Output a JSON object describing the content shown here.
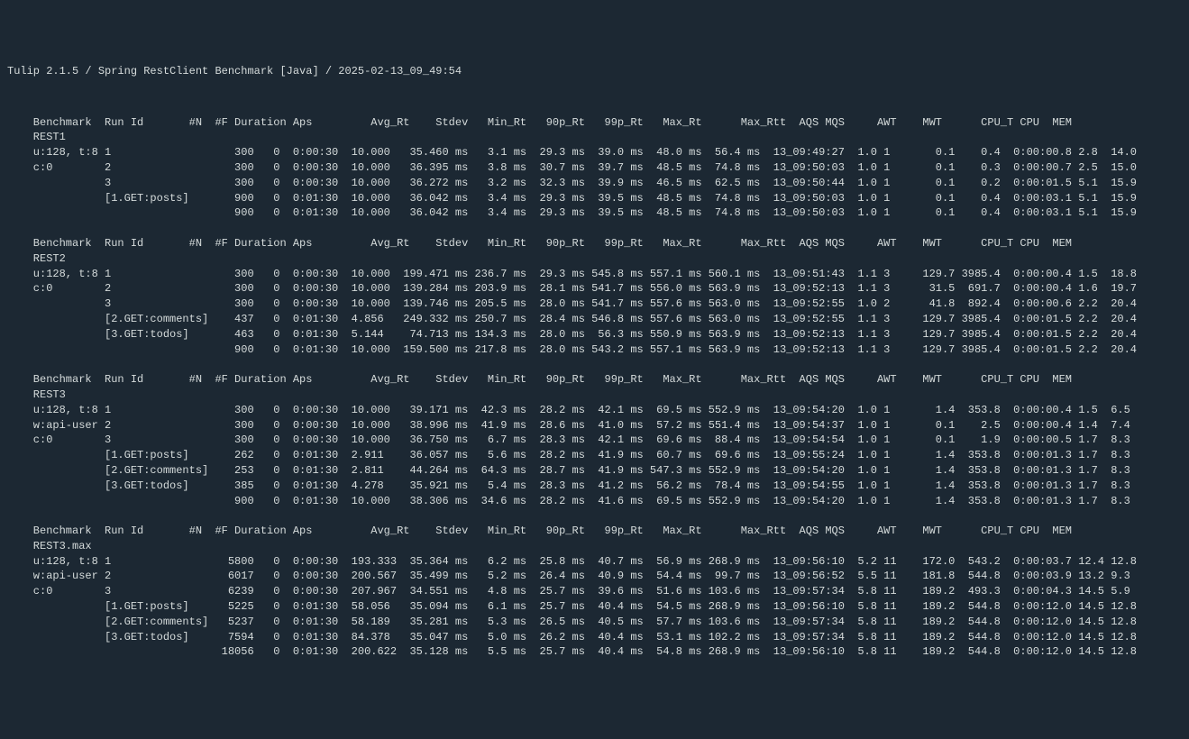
{
  "title": "Tulip 2.1.5 / Spring RestClient Benchmark [Java] / 2025-02-13_09_49:54",
  "header_cols": [
    "Benchmark",
    "Run Id",
    "#N",
    "#F",
    "Duration",
    "Aps",
    "Avg_Rt",
    "Stdev",
    "Min_Rt",
    "90p_Rt",
    "99p_Rt",
    "Max_Rt",
    "Max_Rtt",
    "AQS",
    "MQS",
    "AWT",
    "MWT",
    "CPU_T",
    "CPU",
    "MEM"
  ],
  "sections": [
    {
      "name": "REST1",
      "prefix": [
        "u:128, t:8",
        "c:0",
        "",
        ""
      ],
      "rows": [
        {
          "runid": "1",
          "n": "300",
          "f": "0",
          "dur": "0:00:30",
          "aps": "10.000",
          "avg": "35.460 ms",
          "std": "3.1 ms",
          "min": "29.3 ms",
          "p90": "39.0 ms",
          "p99": "48.0 ms",
          "max": "56.4 ms",
          "maxrtt": "13_09:49:27",
          "aqs": "1.0",
          "mqs": "1",
          "awt": "0.1",
          "mwt": "0.4",
          "cput": "0:00:00.8",
          "cpu": "2.8",
          "mem": "14.0"
        },
        {
          "runid": "2",
          "n": "300",
          "f": "0",
          "dur": "0:00:30",
          "aps": "10.000",
          "avg": "36.395 ms",
          "std": "3.8 ms",
          "min": "30.7 ms",
          "p90": "39.7 ms",
          "p99": "48.5 ms",
          "max": "74.8 ms",
          "maxrtt": "13_09:50:03",
          "aqs": "1.0",
          "mqs": "1",
          "awt": "0.1",
          "mwt": "0.3",
          "cput": "0:00:00.7",
          "cpu": "2.5",
          "mem": "15.0"
        },
        {
          "runid": "3",
          "n": "300",
          "f": "0",
          "dur": "0:00:30",
          "aps": "10.000",
          "avg": "36.272 ms",
          "std": "3.2 ms",
          "min": "32.3 ms",
          "p90": "39.9 ms",
          "p99": "46.5 ms",
          "max": "62.5 ms",
          "maxrtt": "13_09:50:44",
          "aqs": "1.0",
          "mqs": "1",
          "awt": "0.1",
          "mwt": "0.2",
          "cput": "0:00:01.5",
          "cpu": "5.1",
          "mem": "15.9"
        },
        {
          "runid": "[1.GET:posts]",
          "n": "900",
          "f": "0",
          "dur": "0:01:30",
          "aps": "10.000",
          "avg": "36.042 ms",
          "std": "3.4 ms",
          "min": "29.3 ms",
          "p90": "39.5 ms",
          "p99": "48.5 ms",
          "max": "74.8 ms",
          "maxrtt": "13_09:50:03",
          "aqs": "1.0",
          "mqs": "1",
          "awt": "0.1",
          "mwt": "0.4",
          "cput": "0:00:03.1",
          "cpu": "5.1",
          "mem": "15.9"
        },
        {
          "runid": "",
          "n": "900",
          "f": "0",
          "dur": "0:01:30",
          "aps": "10.000",
          "avg": "36.042 ms",
          "std": "3.4 ms",
          "min": "29.3 ms",
          "p90": "39.5 ms",
          "p99": "48.5 ms",
          "max": "74.8 ms",
          "maxrtt": "13_09:50:03",
          "aqs": "1.0",
          "mqs": "1",
          "awt": "0.1",
          "mwt": "0.4",
          "cput": "0:00:03.1",
          "cpu": "5.1",
          "mem": "15.9"
        }
      ]
    },
    {
      "name": "REST2",
      "prefix": [
        "u:128, t:8",
        "c:0",
        "",
        "",
        ""
      ],
      "rows": [
        {
          "runid": "1",
          "n": "300",
          "f": "0",
          "dur": "0:00:30",
          "aps": "10.000",
          "avg": "199.471 ms",
          "std": "236.7 ms",
          "min": "29.3 ms",
          "p90": "545.8 ms",
          "p99": "557.1 ms",
          "max": "560.1 ms",
          "maxrtt": "13_09:51:43",
          "aqs": "1.1",
          "mqs": "3",
          "awt": "129.7",
          "mwt": "3985.4",
          "cput": "0:00:00.4",
          "cpu": "1.5",
          "mem": "18.8"
        },
        {
          "runid": "2",
          "n": "300",
          "f": "0",
          "dur": "0:00:30",
          "aps": "10.000",
          "avg": "139.284 ms",
          "std": "203.9 ms",
          "min": "28.1 ms",
          "p90": "541.7 ms",
          "p99": "556.0 ms",
          "max": "563.9 ms",
          "maxrtt": "13_09:52:13",
          "aqs": "1.1",
          "mqs": "3",
          "awt": "31.5",
          "mwt": "691.7",
          "cput": "0:00:00.4",
          "cpu": "1.6",
          "mem": "19.7"
        },
        {
          "runid": "3",
          "n": "300",
          "f": "0",
          "dur": "0:00:30",
          "aps": "10.000",
          "avg": "139.746 ms",
          "std": "205.5 ms",
          "min": "28.0 ms",
          "p90": "541.7 ms",
          "p99": "557.6 ms",
          "max": "563.0 ms",
          "maxrtt": "13_09:52:55",
          "aqs": "1.0",
          "mqs": "2",
          "awt": "41.8",
          "mwt": "892.4",
          "cput": "0:00:00.6",
          "cpu": "2.2",
          "mem": "20.4"
        },
        {
          "runid": "[2.GET:comments]",
          "n": "437",
          "f": "0",
          "dur": "0:01:30",
          "aps": "4.856",
          "avg": "249.332 ms",
          "std": "250.7 ms",
          "min": "28.4 ms",
          "p90": "546.8 ms",
          "p99": "557.6 ms",
          "max": "563.0 ms",
          "maxrtt": "13_09:52:55",
          "aqs": "1.1",
          "mqs": "3",
          "awt": "129.7",
          "mwt": "3985.4",
          "cput": "0:00:01.5",
          "cpu": "2.2",
          "mem": "20.4"
        },
        {
          "runid": "[3.GET:todos]",
          "n": "463",
          "f": "0",
          "dur": "0:01:30",
          "aps": "5.144",
          "avg": "74.713 ms",
          "std": "134.3 ms",
          "min": "28.0 ms",
          "p90": "56.3 ms",
          "p99": "550.9 ms",
          "max": "563.9 ms",
          "maxrtt": "13_09:52:13",
          "aqs": "1.1",
          "mqs": "3",
          "awt": "129.7",
          "mwt": "3985.4",
          "cput": "0:00:01.5",
          "cpu": "2.2",
          "mem": "20.4"
        },
        {
          "runid": "",
          "n": "900",
          "f": "0",
          "dur": "0:01:30",
          "aps": "10.000",
          "avg": "159.500 ms",
          "std": "217.8 ms",
          "min": "28.0 ms",
          "p90": "543.2 ms",
          "p99": "557.1 ms",
          "max": "563.9 ms",
          "maxrtt": "13_09:52:13",
          "aqs": "1.1",
          "mqs": "3",
          "awt": "129.7",
          "mwt": "3985.4",
          "cput": "0:00:01.5",
          "cpu": "2.2",
          "mem": "20.4"
        }
      ]
    },
    {
      "name": "REST3",
      "prefix": [
        "u:128, t:8",
        "w:api-user",
        "c:0",
        "",
        "",
        ""
      ],
      "rows": [
        {
          "runid": "1",
          "n": "300",
          "f": "0",
          "dur": "0:00:30",
          "aps": "10.000",
          "avg": "39.171 ms",
          "std": "42.3 ms",
          "min": "28.2 ms",
          "p90": "42.1 ms",
          "p99": "69.5 ms",
          "max": "552.9 ms",
          "maxrtt": "13_09:54:20",
          "aqs": "1.0",
          "mqs": "1",
          "awt": "1.4",
          "mwt": "353.8",
          "cput": "0:00:00.4",
          "cpu": "1.5",
          "mem": "6.5"
        },
        {
          "runid": "2",
          "n": "300",
          "f": "0",
          "dur": "0:00:30",
          "aps": "10.000",
          "avg": "38.996 ms",
          "std": "41.9 ms",
          "min": "28.6 ms",
          "p90": "41.0 ms",
          "p99": "57.2 ms",
          "max": "551.4 ms",
          "maxrtt": "13_09:54:37",
          "aqs": "1.0",
          "mqs": "1",
          "awt": "0.1",
          "mwt": "2.5",
          "cput": "0:00:00.4",
          "cpu": "1.4",
          "mem": "7.4"
        },
        {
          "runid": "3",
          "n": "300",
          "f": "0",
          "dur": "0:00:30",
          "aps": "10.000",
          "avg": "36.750 ms",
          "std": "6.7 ms",
          "min": "28.3 ms",
          "p90": "42.1 ms",
          "p99": "69.6 ms",
          "max": "88.4 ms",
          "maxrtt": "13_09:54:54",
          "aqs": "1.0",
          "mqs": "1",
          "awt": "0.1",
          "mwt": "1.9",
          "cput": "0:00:00.5",
          "cpu": "1.7",
          "mem": "8.3"
        },
        {
          "runid": "[1.GET:posts]",
          "n": "262",
          "f": "0",
          "dur": "0:01:30",
          "aps": "2.911",
          "avg": "36.057 ms",
          "std": "5.6 ms",
          "min": "28.2 ms",
          "p90": "41.9 ms",
          "p99": "60.7 ms",
          "max": "69.6 ms",
          "maxrtt": "13_09:55:24",
          "aqs": "1.0",
          "mqs": "1",
          "awt": "1.4",
          "mwt": "353.8",
          "cput": "0:00:01.3",
          "cpu": "1.7",
          "mem": "8.3"
        },
        {
          "runid": "[2.GET:comments]",
          "n": "253",
          "f": "0",
          "dur": "0:01:30",
          "aps": "2.811",
          "avg": "44.264 ms",
          "std": "64.3 ms",
          "min": "28.7 ms",
          "p90": "41.9 ms",
          "p99": "547.3 ms",
          "max": "552.9 ms",
          "maxrtt": "13_09:54:20",
          "aqs": "1.0",
          "mqs": "1",
          "awt": "1.4",
          "mwt": "353.8",
          "cput": "0:00:01.3",
          "cpu": "1.7",
          "mem": "8.3"
        },
        {
          "runid": "[3.GET:todos]",
          "n": "385",
          "f": "0",
          "dur": "0:01:30",
          "aps": "4.278",
          "avg": "35.921 ms",
          "std": "5.4 ms",
          "min": "28.3 ms",
          "p90": "41.2 ms",
          "p99": "56.2 ms",
          "max": "78.4 ms",
          "maxrtt": "13_09:54:55",
          "aqs": "1.0",
          "mqs": "1",
          "awt": "1.4",
          "mwt": "353.8",
          "cput": "0:00:01.3",
          "cpu": "1.7",
          "mem": "8.3"
        },
        {
          "runid": "",
          "n": "900",
          "f": "0",
          "dur": "0:01:30",
          "aps": "10.000",
          "avg": "38.306 ms",
          "std": "34.6 ms",
          "min": "28.2 ms",
          "p90": "41.6 ms",
          "p99": "69.5 ms",
          "max": "552.9 ms",
          "maxrtt": "13_09:54:20",
          "aqs": "1.0",
          "mqs": "1",
          "awt": "1.4",
          "mwt": "353.8",
          "cput": "0:00:01.3",
          "cpu": "1.7",
          "mem": "8.3"
        }
      ]
    },
    {
      "name": "REST3.max",
      "prefix": [
        "u:128, t:8",
        "w:api-user",
        "c:0",
        "",
        "",
        ""
      ],
      "rows": [
        {
          "runid": "1",
          "n": "5800",
          "f": "0",
          "dur": "0:00:30",
          "aps": "193.333",
          "avg": "35.364 ms",
          "std": "6.2 ms",
          "min": "25.8 ms",
          "p90": "40.7 ms",
          "p99": "56.9 ms",
          "max": "268.9 ms",
          "maxrtt": "13_09:56:10",
          "aqs": "5.2",
          "mqs": "11",
          "awt": "172.0",
          "mwt": "543.2",
          "cput": "0:00:03.7",
          "cpu": "12.4",
          "mem": "12.8"
        },
        {
          "runid": "2",
          "n": "6017",
          "f": "0",
          "dur": "0:00:30",
          "aps": "200.567",
          "avg": "35.499 ms",
          "std": "5.2 ms",
          "min": "26.4 ms",
          "p90": "40.9 ms",
          "p99": "54.4 ms",
          "max": "99.7 ms",
          "maxrtt": "13_09:56:52",
          "aqs": "5.5",
          "mqs": "11",
          "awt": "181.8",
          "mwt": "544.8",
          "cput": "0:00:03.9",
          "cpu": "13.2",
          "mem": "9.3"
        },
        {
          "runid": "3",
          "n": "6239",
          "f": "0",
          "dur": "0:00:30",
          "aps": "207.967",
          "avg": "34.551 ms",
          "std": "4.8 ms",
          "min": "25.7 ms",
          "p90": "39.6 ms",
          "p99": "51.6 ms",
          "max": "103.6 ms",
          "maxrtt": "13_09:57:34",
          "aqs": "5.8",
          "mqs": "11",
          "awt": "189.2",
          "mwt": "493.3",
          "cput": "0:00:04.3",
          "cpu": "14.5",
          "mem": "5.9"
        },
        {
          "runid": "[1.GET:posts]",
          "n": "5225",
          "f": "0",
          "dur": "0:01:30",
          "aps": "58.056",
          "avg": "35.094 ms",
          "std": "6.1 ms",
          "min": "25.7 ms",
          "p90": "40.4 ms",
          "p99": "54.5 ms",
          "max": "268.9 ms",
          "maxrtt": "13_09:56:10",
          "aqs": "5.8",
          "mqs": "11",
          "awt": "189.2",
          "mwt": "544.8",
          "cput": "0:00:12.0",
          "cpu": "14.5",
          "mem": "12.8"
        },
        {
          "runid": "[2.GET:comments]",
          "n": "5237",
          "f": "0",
          "dur": "0:01:30",
          "aps": "58.189",
          "avg": "35.281 ms",
          "std": "5.3 ms",
          "min": "26.5 ms",
          "p90": "40.5 ms",
          "p99": "57.7 ms",
          "max": "103.6 ms",
          "maxrtt": "13_09:57:34",
          "aqs": "5.8",
          "mqs": "11",
          "awt": "189.2",
          "mwt": "544.8",
          "cput": "0:00:12.0",
          "cpu": "14.5",
          "mem": "12.8"
        },
        {
          "runid": "[3.GET:todos]",
          "n": "7594",
          "f": "0",
          "dur": "0:01:30",
          "aps": "84.378",
          "avg": "35.047 ms",
          "std": "5.0 ms",
          "min": "26.2 ms",
          "p90": "40.4 ms",
          "p99": "53.1 ms",
          "max": "102.2 ms",
          "maxrtt": "13_09:57:34",
          "aqs": "5.8",
          "mqs": "11",
          "awt": "189.2",
          "mwt": "544.8",
          "cput": "0:00:12.0",
          "cpu": "14.5",
          "mem": "12.8"
        },
        {
          "runid": "",
          "n": "18056",
          "f": "0",
          "dur": "0:01:30",
          "aps": "200.622",
          "avg": "35.128 ms",
          "std": "5.5 ms",
          "min": "25.7 ms",
          "p90": "40.4 ms",
          "p99": "54.8 ms",
          "max": "268.9 ms",
          "maxrtt": "13_09:56:10",
          "aqs": "5.8",
          "mqs": "11",
          "awt": "189.2",
          "mwt": "544.8",
          "cput": "0:00:12.0",
          "cpu": "14.5",
          "mem": "12.8"
        }
      ]
    }
  ],
  "layout": {
    "widths": {
      "bench": 11,
      "runid": 17,
      "n": 6,
      "f": 3,
      "dur": 9,
      "aps": 8,
      "avg": 11,
      "std": 9,
      "min": 8,
      "p90": 9,
      "p99": 9,
      "max": 9,
      "maxrtt": 12,
      "aqs": 4,
      "mqs": 4,
      "awt": 7,
      "mwt": 7,
      "cput": 10,
      "cpu": 5,
      "mem": 5
    }
  }
}
